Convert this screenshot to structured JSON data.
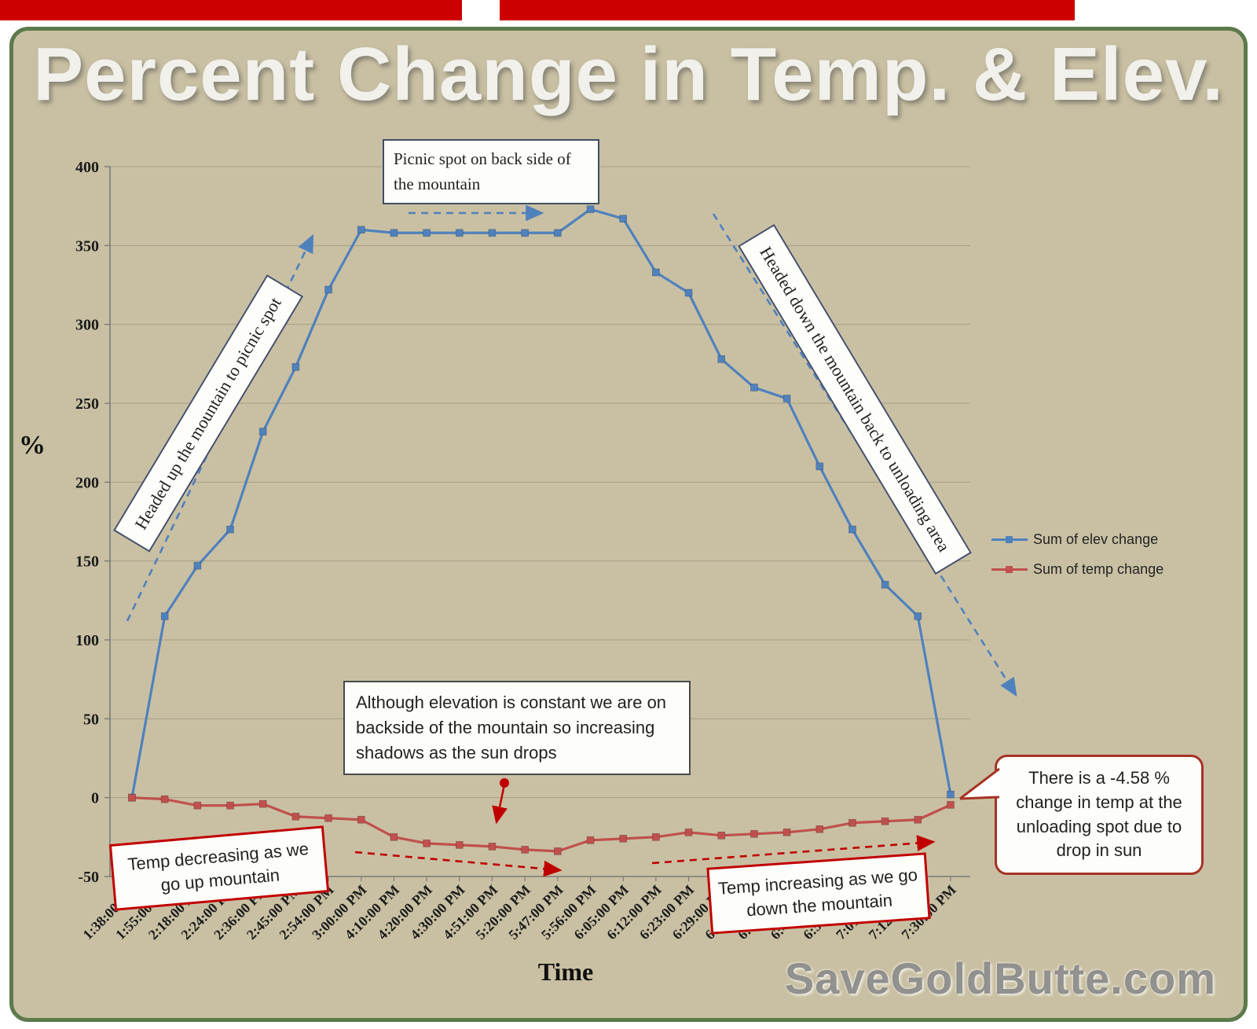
{
  "page": {
    "title": "Percent Change in Temp. & Elev.",
    "watermark": "SaveGoldButte.com",
    "colors": {
      "background": "#c9c0a3",
      "frame_border": "#5c7a4b",
      "top_strip": "#cc0000",
      "elev": "#4f81bd",
      "temp": "#c0504d",
      "grid": "#a69e84",
      "axis": "#7a7a7a",
      "red_accent": "#c00000"
    }
  },
  "chart_data": {
    "type": "line",
    "title": "Percent Change in Temp. & Elev.",
    "xlabel": "Time",
    "ylabel": "%",
    "ylim": [
      -50,
      400
    ],
    "ytick_step": 50,
    "grid": true,
    "legend_position": "right",
    "categories": [
      "1:38:00 PM",
      "1:55:00 PM",
      "2:18:00 PM",
      "2:24:00 PM",
      "2:36:00 PM",
      "2:45:00 PM",
      "2:54:00 PM",
      "3:00:00 PM",
      "4:10:00 PM",
      "4:20:00 PM",
      "4:30:00 PM",
      "4:51:00 PM",
      "5:20:00 PM",
      "5:47:00 PM",
      "5:56:00 PM",
      "6:05:00 PM",
      "6:12:00 PM",
      "6:23:00 PM",
      "6:29:00 PM",
      "6:37:00 PM",
      "6:43:00 PM",
      "6:46:00 PM",
      "6:52:00 PM",
      "7:01:00 PM",
      "7:12:00 PM",
      "7:30:00 PM"
    ],
    "series": [
      {
        "name": "Sum of elev change",
        "color": "#4f81bd",
        "values": [
          0,
          115,
          147,
          170,
          232,
          273,
          322,
          360,
          358,
          358,
          358,
          358,
          358,
          358,
          373,
          367,
          333,
          320,
          278,
          260,
          253,
          210,
          170,
          135,
          115,
          2
        ]
      },
      {
        "name": "Sum of temp change",
        "color": "#c0504d",
        "values": [
          0,
          -1,
          -5,
          -5,
          -4,
          -12,
          -13,
          -14,
          -25,
          -29,
          -30,
          -31,
          -33,
          -34,
          -27,
          -26,
          -25,
          -22,
          -24,
          -23,
          -22,
          -20,
          -16,
          -15,
          -14,
          -4.58
        ]
      }
    ]
  },
  "annotations": {
    "picnic": "Picnic spot on back side of the mountain",
    "headed_up": "Headed up the mountain to picnic spot",
    "headed_down": "Headed down the mountain back to unloading area",
    "constant_elev": "Although elevation is constant  we are on backside of the mountain so increasing shadows as the sun drops",
    "temp_decreasing": "Temp decreasing as we go up mountain",
    "temp_increasing": "Temp increasing as we go down the mountain",
    "bubble": "There is a -4.58 % change in temp at the unloading spot due to drop in sun"
  }
}
